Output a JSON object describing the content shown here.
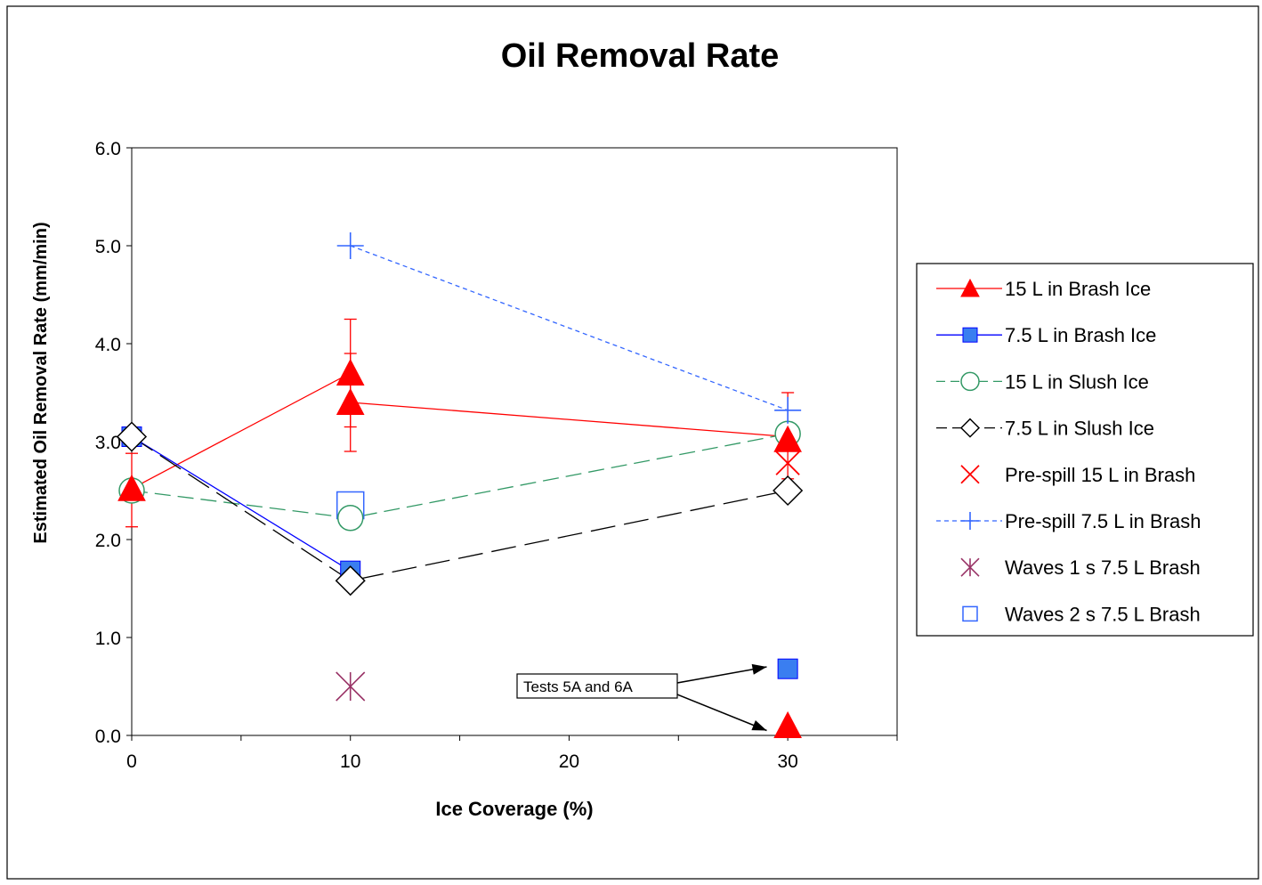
{
  "chart_data": {
    "type": "scatter",
    "title": "Oil Removal Rate",
    "xlabel": "Ice Coverage (%)",
    "ylabel": "Estimated Oil Removal Rate (mm/min)",
    "xlim": [
      0,
      35
    ],
    "ylim": [
      0,
      6
    ],
    "x_ticks": [
      0,
      10,
      20,
      30
    ],
    "x_tick_labels": [
      "0",
      "10",
      "20",
      "30"
    ],
    "y_ticks": [
      0,
      1,
      2,
      3,
      4,
      5,
      6
    ],
    "y_tick_labels": [
      "0.0",
      "1.0",
      "2.0",
      "3.0",
      "4.0",
      "5.0",
      "6.0"
    ],
    "grid": false,
    "legend_position": "right",
    "series": [
      {
        "name": "15 L in Brash Ice",
        "color": "#ff0000",
        "marker": "triangle",
        "line": "solid",
        "lines": [
          [
            [
              0,
              2.52
            ],
            [
              10,
              3.7
            ]
          ],
          [
            [
              10,
              3.4
            ],
            [
              30,
              3.05
            ]
          ]
        ],
        "points": [
          [
            0,
            2.52
          ],
          [
            10,
            3.7
          ],
          [
            10,
            3.4
          ],
          [
            30,
            3.02
          ],
          [
            30,
            0.1
          ]
        ],
        "error_bars": [
          {
            "x": 0,
            "low": 2.13,
            "high": 2.88
          },
          {
            "x": 10,
            "low": 3.15,
            "high": 4.25
          },
          {
            "x": 10,
            "low": 2.9,
            "high": 3.9
          },
          {
            "x": 30,
            "low": 2.62,
            "high": 3.5
          }
        ]
      },
      {
        "name": "7.5 L in Brash Ice",
        "color": "#0000ff",
        "marker_fill": "#3a7ef0",
        "marker": "square",
        "line": "solid",
        "lines": [
          [
            [
              0,
              3.05
            ],
            [
              10,
              1.68
            ]
          ]
        ],
        "points": [
          [
            0,
            3.05
          ],
          [
            10,
            1.68
          ],
          [
            30,
            0.68
          ]
        ]
      },
      {
        "name": "15 L in Slush Ice",
        "color": "#339966",
        "marker": "circle",
        "line": "dashed",
        "lines": [
          [
            [
              0,
              2.5
            ],
            [
              10,
              2.22
            ],
            [
              30,
              3.08
            ]
          ]
        ],
        "points": [
          [
            0,
            2.5
          ],
          [
            10,
            2.22
          ],
          [
            30,
            3.08
          ]
        ]
      },
      {
        "name": "7.5 L in Slush Ice",
        "color": "#000000",
        "marker": "diamond",
        "line": "long-dash",
        "lines": [
          [
            [
              0,
              3.05
            ],
            [
              10,
              1.58
            ],
            [
              30,
              2.5
            ]
          ]
        ],
        "points": [
          [
            0,
            3.05
          ],
          [
            10,
            1.58
          ],
          [
            30,
            2.5
          ]
        ]
      },
      {
        "name": "Pre-spill 15 L in Brash",
        "color": "#ff0000",
        "marker": "x",
        "line": "none",
        "points": [
          [
            30,
            2.78
          ]
        ]
      },
      {
        "name": "Pre-spill 7.5 L in Brash",
        "color": "#3366ff",
        "marker": "plus",
        "line": "short-dash",
        "lines": [
          [
            [
              10,
              5.0
            ],
            [
              30,
              3.32
            ]
          ]
        ],
        "points": [
          [
            10,
            5.0
          ],
          [
            30,
            3.32
          ]
        ]
      },
      {
        "name": "Waves 1 s 7.5 L Brash",
        "color": "#993366",
        "marker": "asterisk",
        "line": "none",
        "points": [
          [
            10,
            0.5
          ]
        ]
      },
      {
        "name": "Waves 2 s 7.5 L Brash",
        "color": "#3366ff",
        "marker": "open-square",
        "line": "none",
        "points": [
          [
            10,
            2.35
          ]
        ]
      }
    ],
    "annotation": {
      "text": "Tests 5A and 6A",
      "targets": [
        [
          29.2,
          0.7
        ],
        [
          29.2,
          0.05
        ]
      ]
    }
  }
}
